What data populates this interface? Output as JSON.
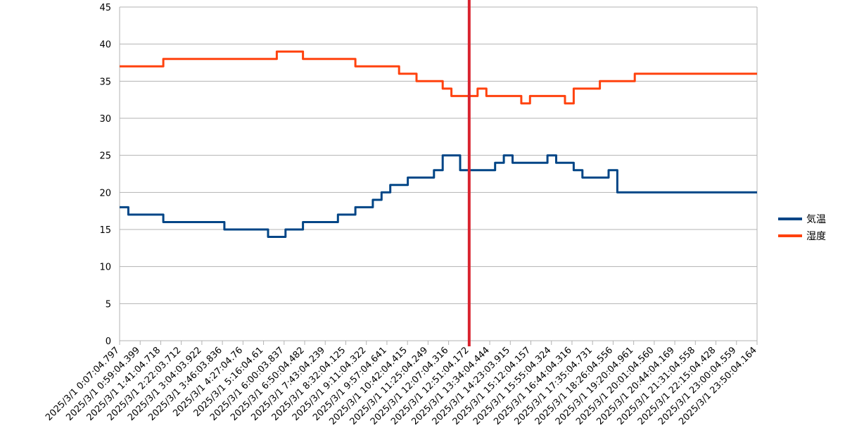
{
  "chart_data": {
    "type": "line",
    "title": "",
    "xlabel": "",
    "ylabel": "",
    "ylim": [
      0,
      45
    ],
    "yticks": [
      0,
      5,
      10,
      15,
      20,
      25,
      30,
      35,
      40,
      45
    ],
    "grid": true,
    "legend_position": "right",
    "xtick_labels": [
      "2025/3/1 0:07:04.797",
      "2025/3/1 0:59:04.399",
      "2025/3/1 1:41:04.718",
      "2025/3/1 2:22:03.712",
      "2025/3/1 3:04:03.922",
      "2025/3/1 3:46:03.836",
      "2025/3/1 4:27:04.76",
      "2025/3/1 5:16:04.61",
      "2025/3/1 6:00:03.837",
      "2025/3/1 6:50:04.482",
      "2025/3/1 7:43:04.239",
      "2025/3/1 8:32:04.125",
      "2025/3/1 9:11:04.322",
      "2025/3/1 9:57:04.641",
      "2025/3/1 10:42:04.415",
      "2025/3/1 11:25:04.249",
      "2025/3/1 12:07:04.316",
      "2025/3/1 12:51:04.172",
      "2025/3/1 13:34:04.444",
      "2025/3/1 14:23:03.915",
      "2025/3/1 15:12:04.157",
      "2025/3/1 15:55:04.324",
      "2025/3/1 16:44:04.316",
      "2025/3/1 17:35:04.731",
      "2025/3/1 18:26:04.556",
      "2025/3/1 19:20:04.961",
      "2025/3/1 20:01:04.560",
      "2025/3/1 20:44:04.169",
      "2025/3/1 21:31:04.558",
      "2025/3/1 22:15:04.428",
      "2025/3/1 23:00:04.559",
      "2025/3/1 23:50:04.164"
    ],
    "marker_line_tick_index": 17,
    "series": [
      {
        "name": "気温",
        "color": "#004586",
        "values": [
          18,
          17,
          17,
          17,
          17,
          16,
          16,
          16,
          16,
          16,
          16,
          16,
          15,
          15,
          15,
          15,
          15,
          14,
          14,
          15,
          15,
          16,
          16,
          16,
          16,
          17,
          17,
          18,
          18,
          19,
          20,
          21,
          21,
          22,
          22,
          22,
          23,
          25,
          25,
          23,
          23,
          23,
          23,
          24,
          25,
          24,
          24,
          24,
          24,
          25,
          24,
          24,
          23,
          22,
          22,
          22,
          23,
          20,
          20,
          20,
          20,
          20,
          20,
          20,
          20,
          20,
          20,
          20,
          20,
          20,
          20,
          20,
          20
        ]
      },
      {
        "name": "湿度",
        "color": "#ff420e",
        "values": [
          37,
          37,
          37,
          37,
          37,
          38,
          38,
          38,
          38,
          38,
          38,
          38,
          38,
          38,
          38,
          38,
          38,
          38,
          39,
          39,
          39,
          38,
          38,
          38,
          38,
          38,
          38,
          37,
          37,
          37,
          37,
          37,
          36,
          36,
          35,
          35,
          35,
          34,
          33,
          33,
          33,
          34,
          33,
          33,
          33,
          33,
          32,
          33,
          33,
          33,
          33,
          32,
          34,
          34,
          34,
          35,
          35,
          35,
          35,
          36,
          36,
          36,
          36,
          36,
          36,
          36,
          36,
          36,
          36,
          36,
          36,
          36,
          36
        ]
      }
    ]
  }
}
